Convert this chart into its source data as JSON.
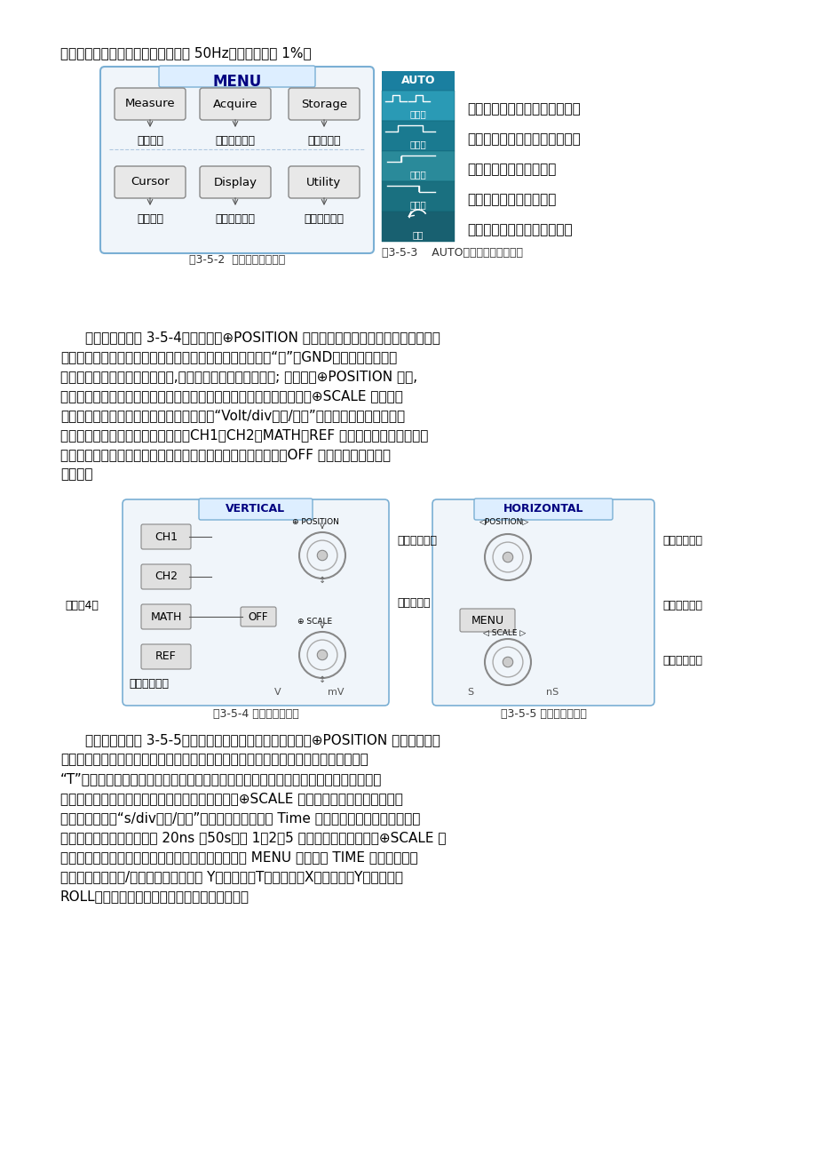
{
  "page_bg": "#ffffff",
  "text_color": "#000000",
  "fig_width": 9.2,
  "fig_height": 13.02,
  "dpi": 100,
  "line1": "时，要求被测信号的频率大于或等于 50Hz，占空比大于 1%。",
  "menu_title": "MENU",
  "menu_buttons_row1": [
    "Measure",
    "Acquire",
    "Storage"
  ],
  "menu_labels_row1": [
    "自动测量",
    "采样系统设置",
    "存储和调出"
  ],
  "menu_buttons_row2": [
    "Cursor",
    "Display",
    "Utility"
  ],
  "menu_labels_row2": [
    "光标测量",
    "显示系统设置",
    "辅助系统设置"
  ],
  "menu_caption": "图3-5-2  前面板常用菜单区",
  "auto_caption": "图3-5-3    AUTO按键功能菜单及作用",
  "auto_items": [
    {
      "label": "多周期",
      "desc": "设置屏幕自动显示多个周期信号"
    },
    {
      "label": "单周期",
      "desc": "设置屏幕自动显示单个周期信号"
    },
    {
      "label": "上升沿",
      "desc": "自动设置并显示上升时间"
    },
    {
      "label": "下降沿",
      "desc": "自动设置并显示下降时间"
    },
    {
      "label": "撤消",
      "desc": "撤消自动设置，返回前一状态"
    }
  ],
  "para1_lines": [
    "垂直控制区如图 3-5-4。垂直位置⊕POSITION 旋鈐可设置所选通道波形的垂直显示位",
    "置。转动该旋鈐不但显示的波形会上下移动，且所选通道的“地”（GND）标识也会随波形",
    "上下移动并显示于屏幕左状态栅,移动值则显示于屏幕左下方; 按下垂直⊕POSITION 旋鈐,",
    "垂直显示位置快速恢复到零点（即显示屏水平中心位置）处。垂直衰减⊕SCALE 旋鈐调整",
    "所选通道波形的显示幅度。转动该旋鈐改变“Volt/div（伏/格）”垂直档位，同时下状态栅",
    "对应通道显示的幅值也会发生变化。CH1、CH2、MATH、REF 为通道或方式按键，按下",
    "某按键屏幕将显示其功能菜单、标志、波形和档位状态等信息。OFF 键用于关闭当前选择",
    "的通道。"
  ],
  "vertical_caption": "图3-5-4 垂直系统操作区",
  "horizontal_caption": "图3-5-5 水平系统操作区",
  "para2_lines": [
    "水平控制区如图 3-5-5，主要用于设置水平时基。水平位置⊕POSITION 旋鈐调整信号",
    "波形在显示屏上的水平位置，转动该旋鈐不但波形随旋鈐而水平移动，且触发位移标志",
    "“T”也在显示屏上部随之移动，移动值则显示在屏幕左下角；按下此旋鈐触发位移恢复到",
    "水平零点（即显示屏垂直中心线置）处。水平衰减⊕SCALE 旋鈐改变水平时基档位设置，",
    "转动该旋鈐改变“s/div（秒/格）”水平档位，下状态栅 Time 后显示的主时基值也会发生相",
    "应的变化。水平扫描速度从 20ns ～50s，以 1－2－5 的形式步进。按动水平⊕SCALE 旋",
    "鈐可快速打开或关闭延迟扫描功能。按水平功能菜单 MENU 键，显示 TIME 功能菜单，在",
    "此菜单下，可开启/关闭延迟扫描，切换 Y（电压）－T（时间）、X（电压）－Y（电压）和",
    "ROLL（滚动）模式，设置水平触发位移复位等。"
  ]
}
